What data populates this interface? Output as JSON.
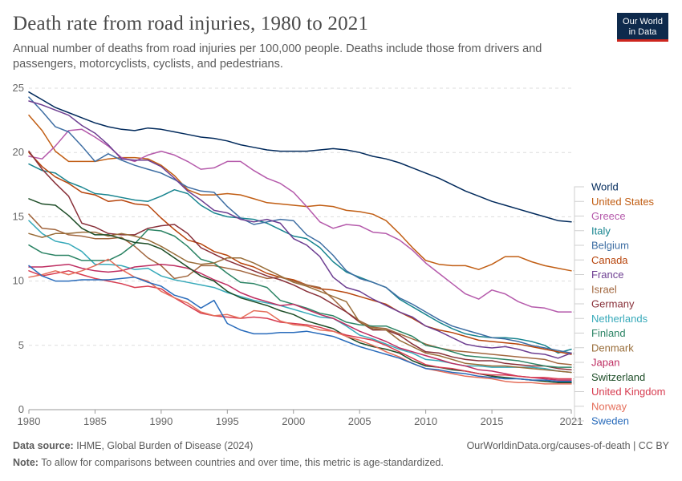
{
  "header": {
    "title": "Death rate from road injuries, 1980 to 2021",
    "subtitle": "Annual number of deaths from road injuries per 100,000 people. Deaths include those from drivers and passengers, motorcyclists, cyclists, and pedestrians.",
    "logo_line1": "Our World",
    "logo_line2": "in Data"
  },
  "footer": {
    "source_label": "Data source:",
    "source_text": "IHME, Global Burden of Disease (2024)",
    "url_text": "OurWorldinData.org/causes-of-death | CC BY",
    "note_label": "Note:",
    "note_text": "To allow for comparisons between countries and over time, this metric is age-standardized."
  },
  "chart_data": {
    "type": "line",
    "title": "Death rate from road injuries, 1980 to 2021",
    "xlabel": "",
    "ylabel": "",
    "xlim": [
      1980,
      2021
    ],
    "ylim": [
      0,
      25
    ],
    "x_ticks": [
      1980,
      1985,
      1990,
      1995,
      2000,
      2005,
      2010,
      2015,
      2021
    ],
    "y_ticks": [
      0,
      5,
      10,
      15,
      20,
      25
    ],
    "grid": "horizontal dashed",
    "legend": "right, labels at line ends",
    "x": [
      1980,
      1981,
      1982,
      1983,
      1984,
      1985,
      1986,
      1987,
      1988,
      1989,
      1990,
      1991,
      1992,
      1993,
      1994,
      1995,
      1996,
      1997,
      1998,
      1999,
      2000,
      2001,
      2002,
      2003,
      2004,
      2005,
      2006,
      2007,
      2008,
      2009,
      2010,
      2011,
      2012,
      2013,
      2014,
      2015,
      2016,
      2017,
      2018,
      2019,
      2020,
      2021
    ],
    "series": [
      {
        "name": "World",
        "color": "#00295b",
        "values": [
          24.7,
          24.1,
          23.5,
          23.1,
          22.7,
          22.3,
          22.0,
          21.8,
          21.7,
          21.9,
          21.8,
          21.6,
          21.4,
          21.2,
          21.1,
          20.9,
          20.6,
          20.4,
          20.2,
          20.1,
          20.1,
          20.1,
          20.2,
          20.3,
          20.2,
          20.0,
          19.7,
          19.5,
          19.2,
          18.8,
          18.4,
          18.0,
          17.5,
          17.0,
          16.6,
          16.2,
          15.9,
          15.6,
          15.3,
          15.0,
          14.7,
          14.6
        ]
      },
      {
        "name": "United States",
        "color": "#c15e14",
        "values": [
          22.9,
          21.7,
          20.1,
          19.3,
          19.3,
          19.3,
          19.5,
          19.6,
          19.6,
          19.5,
          19.0,
          18.2,
          17.1,
          16.7,
          16.7,
          16.8,
          16.7,
          16.4,
          16.1,
          16.0,
          15.9,
          15.8,
          15.9,
          15.8,
          15.5,
          15.4,
          15.2,
          14.7,
          13.7,
          12.6,
          11.6,
          11.3,
          11.2,
          11.2,
          10.9,
          11.3,
          11.9,
          11.9,
          11.5,
          11.2,
          11.0,
          10.8
        ]
      },
      {
        "name": "Greece",
        "color": "#b55aab",
        "values": [
          19.7,
          19.5,
          20.5,
          21.7,
          21.8,
          21.2,
          20.5,
          19.6,
          19.3,
          19.8,
          20.1,
          19.8,
          19.3,
          18.7,
          18.8,
          19.3,
          19.3,
          18.6,
          18.0,
          17.6,
          16.9,
          15.8,
          14.6,
          14.1,
          14.4,
          14.3,
          13.8,
          13.7,
          13.2,
          12.4,
          11.4,
          10.6,
          9.8,
          9.0,
          8.6,
          9.3,
          9.0,
          8.4,
          8.0,
          7.9,
          7.6,
          7.6
        ]
      },
      {
        "name": "Italy",
        "color": "#18848f",
        "values": [
          19.1,
          18.6,
          18.4,
          17.7,
          17.3,
          16.8,
          16.7,
          16.5,
          16.3,
          16.2,
          16.6,
          17.1,
          16.8,
          15.9,
          15.3,
          15.0,
          14.9,
          14.8,
          14.5,
          14.0,
          13.5,
          13.3,
          12.6,
          11.5,
          10.7,
          10.3,
          9.9,
          9.5,
          8.6,
          8.0,
          7.4,
          6.8,
          6.3,
          5.9,
          5.7,
          5.6,
          5.6,
          5.5,
          5.3,
          5.0,
          4.4,
          4.7
        ]
      },
      {
        "name": "Belgium",
        "color": "#3e6ea3",
        "values": [
          24.3,
          23.2,
          22.0,
          21.6,
          20.5,
          19.3,
          19.9,
          19.4,
          19.0,
          18.7,
          18.4,
          17.9,
          17.3,
          17.0,
          16.9,
          15.8,
          14.9,
          14.4,
          14.6,
          14.8,
          14.7,
          13.6,
          13.0,
          12.0,
          10.8,
          10.2,
          9.9,
          9.5,
          8.7,
          8.2,
          7.6,
          7.0,
          6.5,
          6.2,
          5.9,
          5.6,
          5.5,
          5.3,
          5.0,
          4.8,
          4.6,
          4.4
        ]
      },
      {
        "name": "Canada",
        "color": "#b7440b",
        "values": [
          20.0,
          18.9,
          18.1,
          17.6,
          16.9,
          16.7,
          16.2,
          16.3,
          16.0,
          15.9,
          14.9,
          14.0,
          13.2,
          12.9,
          12.3,
          12.0,
          11.4,
          11.1,
          10.6,
          10.3,
          10.1,
          9.7,
          9.4,
          9.3,
          9.1,
          8.8,
          8.5,
          8.2,
          7.6,
          7.1,
          6.5,
          6.2,
          6.0,
          5.7,
          5.4,
          5.3,
          5.2,
          5.1,
          4.9,
          4.7,
          4.5,
          4.3
        ]
      },
      {
        "name": "France",
        "color": "#6d3e91",
        "values": [
          24.0,
          23.7,
          23.3,
          22.9,
          22.1,
          21.5,
          20.6,
          19.5,
          19.4,
          19.4,
          18.9,
          18.0,
          17.0,
          16.3,
          15.5,
          15.3,
          14.8,
          14.6,
          14.8,
          14.5,
          13.3,
          12.8,
          11.9,
          10.3,
          9.5,
          9.2,
          8.6,
          8.1,
          7.6,
          7.2,
          6.5,
          6.1,
          5.6,
          5.1,
          4.9,
          4.8,
          4.9,
          4.7,
          4.4,
          4.3,
          4.0,
          4.4
        ]
      },
      {
        "name": "Israel",
        "color": "#a2673f",
        "values": [
          15.2,
          14.1,
          14.0,
          13.6,
          13.5,
          13.3,
          13.3,
          13.4,
          12.7,
          11.8,
          11.2,
          10.2,
          10.4,
          11.2,
          11.2,
          11.0,
          10.8,
          10.5,
          10.2,
          10.3,
          10.0,
          9.7,
          9.5,
          8.6,
          7.6,
          6.9,
          6.4,
          6.3,
          5.9,
          5.5,
          5.1,
          4.8,
          4.6,
          4.5,
          4.4,
          4.3,
          4.2,
          4.1,
          4.0,
          3.9,
          3.6,
          3.5
        ]
      },
      {
        "name": "Germany",
        "color": "#883039",
        "values": [
          20.1,
          18.7,
          17.6,
          16.6,
          14.5,
          14.2,
          13.7,
          13.6,
          13.6,
          14.1,
          14.3,
          14.4,
          13.7,
          12.6,
          12.1,
          11.6,
          11.2,
          10.8,
          10.4,
          10.1,
          9.7,
          9.2,
          8.8,
          8.2,
          7.6,
          6.8,
          6.2,
          6.2,
          5.8,
          5.1,
          4.5,
          4.4,
          4.1,
          3.9,
          3.8,
          3.8,
          3.6,
          3.5,
          3.4,
          3.4,
          3.2,
          3.1
        ]
      },
      {
        "name": "Netherlands",
        "color": "#38aaba",
        "values": [
          14.7,
          13.7,
          13.1,
          12.9,
          12.3,
          11.3,
          11.3,
          11.2,
          10.9,
          11.0,
          10.4,
          10.1,
          9.9,
          9.7,
          9.5,
          9.1,
          8.8,
          8.5,
          8.3,
          8.1,
          7.8,
          7.5,
          7.2,
          7.1,
          6.5,
          5.8,
          5.5,
          5.1,
          4.7,
          4.4,
          3.9,
          3.8,
          3.6,
          3.4,
          3.4,
          3.3,
          3.3,
          3.3,
          3.3,
          3.2,
          3.0,
          2.9
        ]
      },
      {
        "name": "Finland",
        "color": "#2c8465",
        "values": [
          12.8,
          12.2,
          12.0,
          12.0,
          11.6,
          11.6,
          11.6,
          12.1,
          12.9,
          14.0,
          13.9,
          13.5,
          12.7,
          11.7,
          11.4,
          10.6,
          9.9,
          9.8,
          9.5,
          8.5,
          8.2,
          7.9,
          7.5,
          7.3,
          6.8,
          6.6,
          6.5,
          6.5,
          6.1,
          5.7,
          5.0,
          4.8,
          4.5,
          4.2,
          4.1,
          4.0,
          3.9,
          3.8,
          3.6,
          3.4,
          3.3,
          3.3
        ]
      },
      {
        "name": "Denmark",
        "color": "#996d39",
        "values": [
          13.7,
          13.4,
          13.7,
          13.7,
          13.8,
          13.8,
          13.5,
          13.7,
          13.5,
          13.2,
          12.7,
          12.1,
          11.5,
          11.3,
          11.4,
          11.8,
          11.8,
          11.4,
          10.9,
          10.4,
          9.9,
          9.6,
          9.2,
          8.8,
          8.4,
          6.8,
          6.3,
          6.2,
          5.4,
          4.9,
          4.4,
          4.2,
          3.9,
          3.6,
          3.5,
          3.4,
          3.4,
          3.3,
          3.2,
          3.1,
          3.0,
          2.9
        ]
      },
      {
        "name": "Japan",
        "color": "#be2d61",
        "values": [
          11.1,
          11.1,
          11.2,
          11.3,
          11.0,
          10.8,
          10.7,
          10.8,
          11.1,
          11.2,
          11.3,
          11.2,
          11.0,
          10.6,
          10.1,
          9.7,
          9.1,
          8.7,
          8.4,
          8.1,
          8.2,
          7.8,
          7.4,
          7.1,
          6.6,
          6.1,
          5.7,
          5.3,
          4.8,
          4.5,
          4.2,
          3.9,
          3.6,
          3.4,
          3.1,
          3.0,
          2.8,
          2.6,
          2.5,
          2.4,
          2.3,
          2.3
        ]
      },
      {
        "name": "Switzerland",
        "color": "#1d4d27",
        "values": [
          16.4,
          16.0,
          15.9,
          15.1,
          14.1,
          13.6,
          13.6,
          13.3,
          13.0,
          12.9,
          12.5,
          11.8,
          11.1,
          10.4,
          10.0,
          9.2,
          8.7,
          8.4,
          8.1,
          7.7,
          7.4,
          6.9,
          6.6,
          6.3,
          5.7,
          5.2,
          4.9,
          4.7,
          4.4,
          3.8,
          3.4,
          3.3,
          3.1,
          3.0,
          2.8,
          2.6,
          2.5,
          2.4,
          2.3,
          2.2,
          2.1,
          2.1
        ]
      },
      {
        "name": "United Kingdom",
        "color": "#d73c50",
        "values": [
          10.8,
          10.4,
          10.6,
          10.8,
          10.5,
          10.2,
          10.0,
          9.8,
          9.5,
          9.6,
          9.4,
          8.7,
          8.1,
          7.5,
          7.3,
          7.2,
          7.1,
          7.2,
          7.1,
          6.8,
          6.7,
          6.6,
          6.4,
          6.1,
          5.8,
          5.6,
          5.4,
          5.0,
          4.5,
          4.0,
          3.5,
          3.3,
          3.2,
          3.0,
          2.8,
          2.7,
          2.7,
          2.6,
          2.5,
          2.5,
          2.4,
          2.4
        ]
      },
      {
        "name": "Norway",
        "color": "#e56e5a",
        "values": [
          10.3,
          10.5,
          10.8,
          10.5,
          10.8,
          11.2,
          11.7,
          10.9,
          10.3,
          10.0,
          9.2,
          8.7,
          8.3,
          7.6,
          7.3,
          7.4,
          7.1,
          7.7,
          7.6,
          6.9,
          6.6,
          6.5,
          6.2,
          6.1,
          5.7,
          5.4,
          5.0,
          4.5,
          4.1,
          3.6,
          3.2,
          3.0,
          2.8,
          2.6,
          2.5,
          2.4,
          2.2,
          2.1,
          2.1,
          2.0,
          2.0,
          2.0
        ]
      },
      {
        "name": "Sweden",
        "color": "#286bbb",
        "values": [
          11.2,
          10.4,
          10.0,
          10.0,
          10.1,
          10.1,
          10.1,
          10.2,
          10.3,
          9.9,
          9.6,
          8.9,
          8.6,
          7.9,
          8.5,
          6.7,
          6.2,
          5.9,
          5.9,
          6.0,
          6.0,
          6.1,
          5.9,
          5.7,
          5.3,
          4.9,
          4.6,
          4.3,
          4.0,
          3.6,
          3.2,
          3.1,
          2.9,
          2.8,
          2.6,
          2.5,
          2.4,
          2.4,
          2.3,
          2.3,
          2.2,
          2.2
        ]
      }
    ]
  }
}
